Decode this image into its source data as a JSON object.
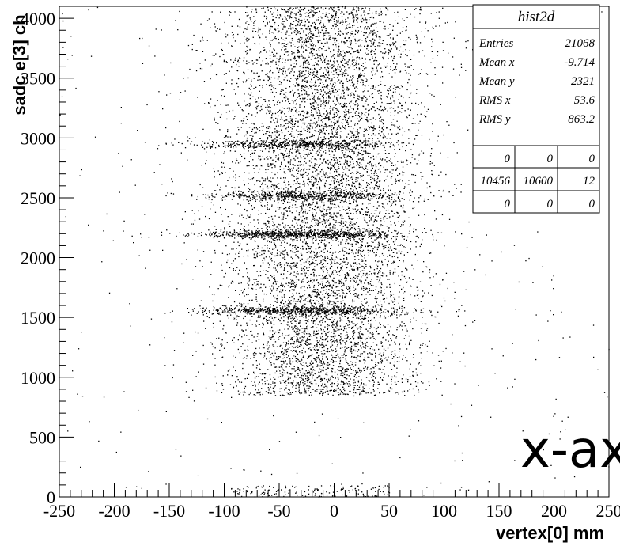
{
  "chart_data": {
    "type": "scatter",
    "xlabel": "vertex[0] mm",
    "ylabel": "sadc e[3] ch",
    "xlim": [
      -250,
      250
    ],
    "ylim": [
      0,
      4100
    ],
    "xticks": [
      -250,
      -200,
      -150,
      -100,
      -50,
      0,
      50,
      100,
      150,
      200,
      250
    ],
    "yticks": [
      0,
      500,
      1000,
      1500,
      2000,
      2500,
      3000,
      3500,
      4000
    ],
    "xtick_labels": [
      "-250",
      "-200",
      "-150",
      "-100",
      "-50",
      "0",
      "50",
      "100",
      "150",
      "200",
      "250"
    ],
    "ytick_labels": [
      "0",
      "500",
      "1000",
      "1500",
      "2000",
      "2500",
      "3000",
      "3500",
      "4000"
    ],
    "grid": false,
    "overlay_text": "x-ax",
    "stats_box": {
      "title": "hist2d",
      "rows": [
        {
          "label": "Entries",
          "value": "21068"
        },
        {
          "label": "Mean x",
          "value": "-9.714"
        },
        {
          "label": "Mean y",
          "value": "2321"
        },
        {
          "label": "RMS x",
          "value": "53.6"
        },
        {
          "label": "RMS y",
          "value": "863.2"
        }
      ],
      "overflow_grid": [
        [
          "0",
          "0",
          "0"
        ],
        [
          "10456",
          "10600",
          "12"
        ],
        [
          "0",
          "0",
          "0"
        ]
      ]
    },
    "distribution": {
      "main_cluster": {
        "x_mean": -9.7,
        "x_rms": 45,
        "y_min": 850,
        "y_max": 4100
      },
      "bands_y": [
        1560,
        2200,
        2520,
        2950
      ],
      "bottom_cluster": {
        "x_min": -100,
        "x_max": 50,
        "y_max": 100
      },
      "background_points": true
    }
  }
}
